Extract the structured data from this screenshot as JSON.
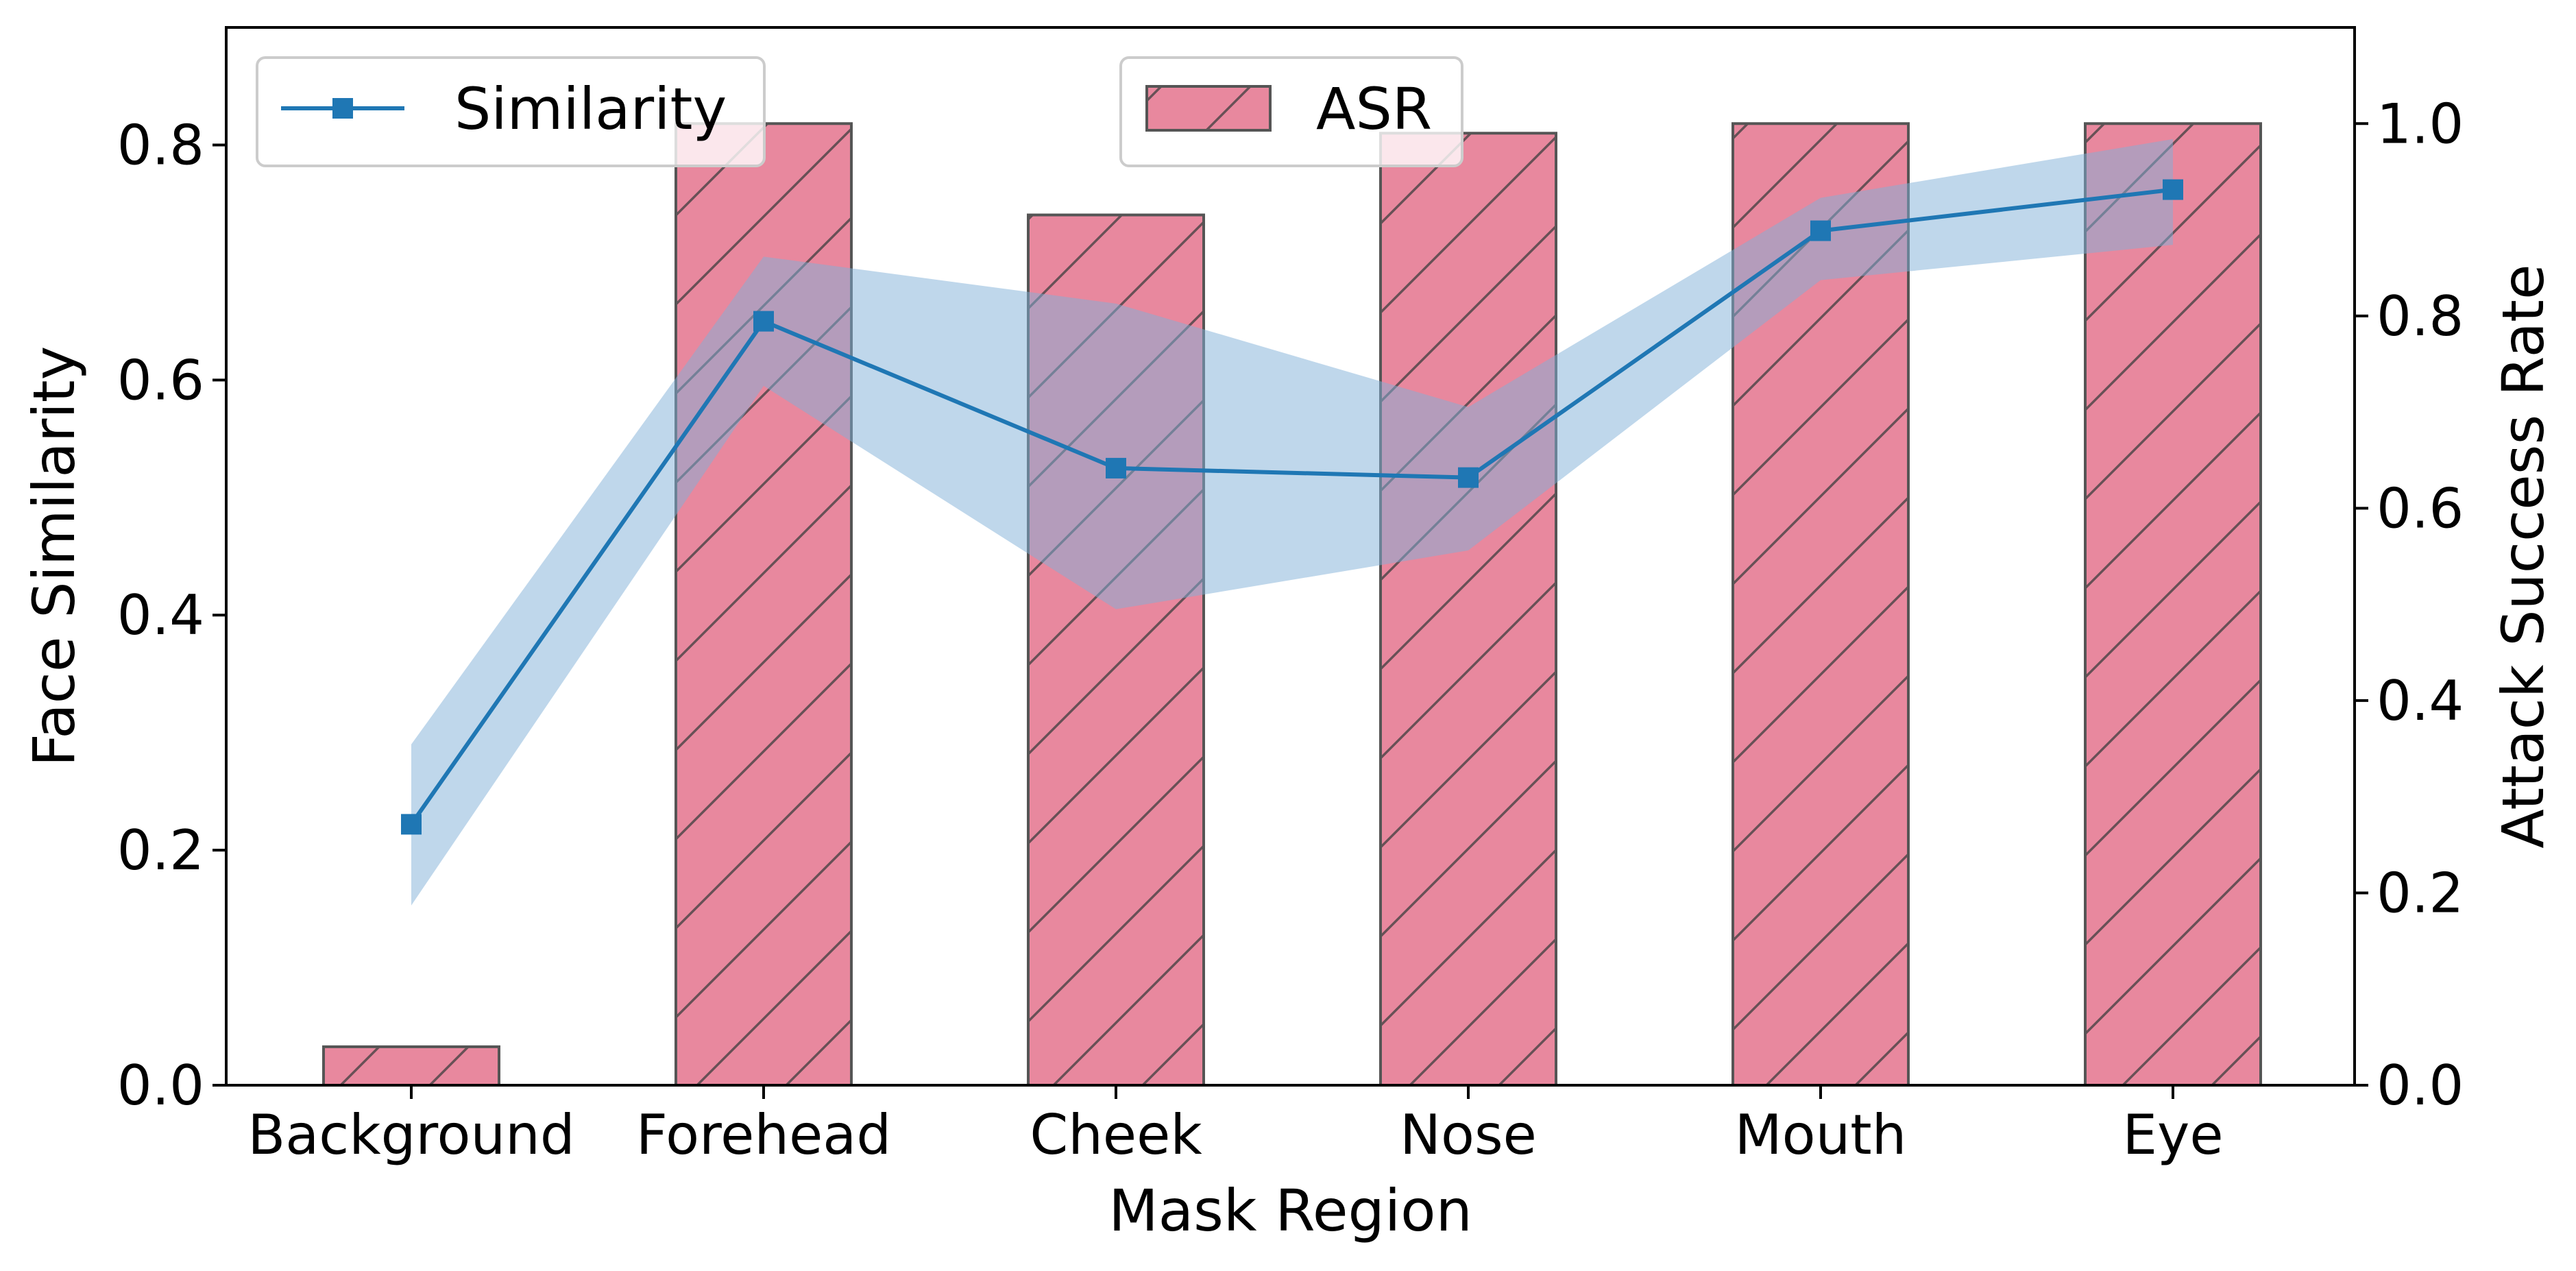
{
  "chart_data": {
    "type": "bar+line",
    "categories": [
      "Background",
      "Forehead",
      "Cheek",
      "Nose",
      "Mouth",
      "Eye"
    ],
    "xlabel": "Mask Region",
    "left_axis": {
      "label": "Face Similarity",
      "ylim": [
        0,
        0.9
      ],
      "ticks": [
        0.0,
        0.2,
        0.4,
        0.6,
        0.8
      ],
      "tick_labels": [
        "0.0",
        "0.2",
        "0.4",
        "0.6",
        "0.8"
      ]
    },
    "right_axis": {
      "label": "Attack Success Rate",
      "ylim": [
        0,
        1.1
      ],
      "ticks": [
        0.0,
        0.2,
        0.4,
        0.6,
        0.8,
        1.0
      ],
      "tick_labels": [
        "0.0",
        "0.2",
        "0.4",
        "0.6",
        "0.8",
        "1.0"
      ]
    },
    "series": [
      {
        "name": "Similarity",
        "kind": "line",
        "axis": "left",
        "marker": "square",
        "color": "#1f77b4",
        "band_color": "#7fb0d8",
        "values": [
          0.222,
          0.65,
          0.525,
          0.517,
          0.727,
          0.762
        ],
        "upper": [
          0.29,
          0.705,
          0.665,
          0.577,
          0.755,
          0.805
        ],
        "lower": [
          0.153,
          0.595,
          0.405,
          0.455,
          0.685,
          0.715
        ]
      },
      {
        "name": "ASR",
        "kind": "bar",
        "axis": "right",
        "hatch": "/",
        "color": "#e0607e",
        "edge_color": "#555555",
        "values": [
          0.04,
          1.0,
          0.905,
          0.99,
          1.0,
          1.0
        ]
      }
    ],
    "legends": [
      {
        "label": "Similarity",
        "placement": "upper-left"
      },
      {
        "label": "ASR",
        "placement": "upper-center"
      }
    ]
  }
}
